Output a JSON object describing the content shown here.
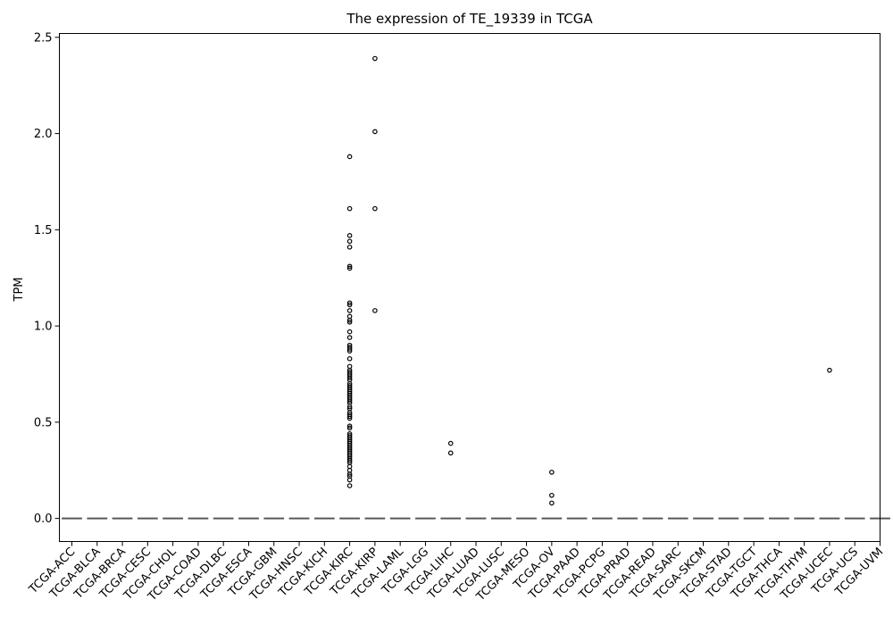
{
  "chart_data": {
    "type": "box",
    "title": "The expression of TE_19339 in TCGA",
    "xlabel": "",
    "ylabel": "TPM",
    "ylim": [
      -0.12,
      2.52
    ],
    "yticks": [
      0.0,
      0.5,
      1.0,
      1.5,
      2.0,
      2.5
    ],
    "ytick_labels": [
      "0.0",
      "0.5",
      "1.0",
      "1.5",
      "2.0",
      "2.5"
    ],
    "grid": false,
    "legend": "none",
    "categories": [
      "TCGA-ACC",
      "TCGA-BLCA",
      "TCGA-BRCA",
      "TCGA-CESC",
      "TCGA-CHOL",
      "TCGA-COAD",
      "TCGA-DLBC",
      "TCGA-ESCA",
      "TCGA-GBM",
      "TCGA-HNSC",
      "TCGA-KICH",
      "TCGA-KIRC",
      "TCGA-KIRP",
      "TCGA-LAML",
      "TCGA-LGG",
      "TCGA-LIHC",
      "TCGA-LUAD",
      "TCGA-LUSC",
      "TCGA-MESO",
      "TCGA-OV",
      "TCGA-PAAD",
      "TCGA-PCPG",
      "TCGA-PRAD",
      "TCGA-READ",
      "TCGA-SARC",
      "TCGA-SKCM",
      "TCGA-STAD",
      "TCGA-TGCT",
      "TCGA-THCA",
      "TCGA-THYM",
      "TCGA-UCEC",
      "TCGA-UCS",
      "TCGA-UVM"
    ],
    "medians": [
      0,
      0,
      0,
      0,
      0,
      0,
      0,
      0,
      0,
      0,
      0,
      0,
      0,
      0,
      0,
      0,
      0,
      0,
      0,
      0,
      0,
      0,
      0,
      0,
      0,
      0,
      0,
      0,
      0,
      0,
      0,
      0,
      0
    ],
    "outliers": {
      "TCGA-KIRC": [
        1.88,
        1.61,
        1.47,
        1.44,
        1.41,
        1.31,
        1.3,
        1.12,
        1.11,
        1.08,
        1.05,
        1.03,
        1.02,
        0.97,
        0.94,
        0.9,
        0.89,
        0.88,
        0.87,
        0.83,
        0.79,
        0.77,
        0.76,
        0.75,
        0.74,
        0.73,
        0.72,
        0.7,
        0.69,
        0.68,
        0.67,
        0.66,
        0.65,
        0.64,
        0.63,
        0.62,
        0.61,
        0.6,
        0.58,
        0.57,
        0.55,
        0.54,
        0.53,
        0.52,
        0.48,
        0.47,
        0.44,
        0.43,
        0.42,
        0.41,
        0.4,
        0.39,
        0.38,
        0.37,
        0.36,
        0.35,
        0.34,
        0.33,
        0.32,
        0.31,
        0.3,
        0.29,
        0.27,
        0.25,
        0.23,
        0.22,
        0.2,
        0.17
      ],
      "TCGA-KIRP": [
        2.39,
        2.01,
        1.61,
        1.08
      ],
      "TCGA-LIHC": [
        0.39,
        0.34
      ],
      "TCGA-OV": [
        0.24,
        0.12,
        0.08
      ],
      "TCGA-UCEC": [
        0.77
      ]
    },
    "colors": {
      "box": "#4c72b0",
      "median": "#555555",
      "outlier_edge": "#000000",
      "axis": "#000000"
    }
  }
}
